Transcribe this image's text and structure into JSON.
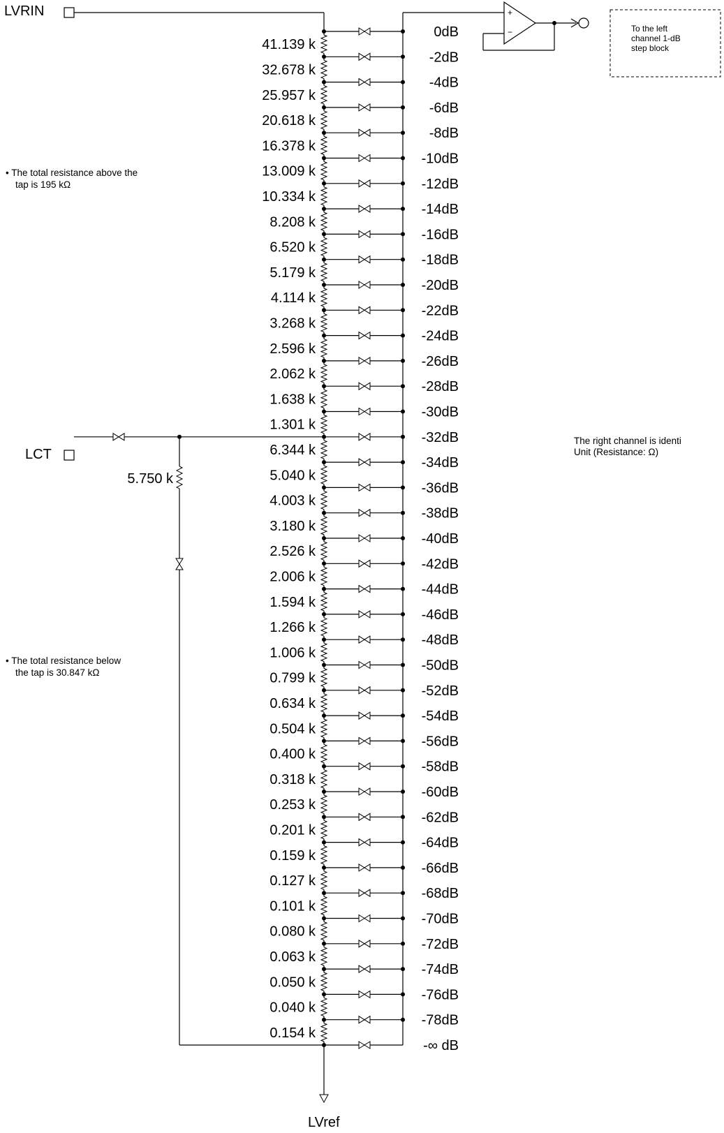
{
  "pins": {
    "input": "LVRIN",
    "tap": "LCT",
    "ref": "LVref"
  },
  "output_note": [
    "To the left",
    "channel 1-dB",
    "step block"
  ],
  "notes": {
    "above": [
      "• The total resistance above the",
      "tap is 195 kΩ"
    ],
    "below": [
      "• The total resistance below",
      "the tap is 30.847 kΩ"
    ],
    "right_channel": [
      "The right channel is identi",
      "Unit (Resistance: Ω)"
    ]
  },
  "tap_branch_resistor": "5.750 k",
  "resistors": [
    "41.139 k",
    "32.678 k",
    "25.957 k",
    "20.618 k",
    "16.378 k",
    "13.009 k",
    "10.334 k",
    "8.208 k",
    "6.520 k",
    "5.179 k",
    "4.114 k",
    "3.268 k",
    "2.596 k",
    "2.062 k",
    "1.638 k",
    "1.301 k",
    "6.344 k",
    "5.040 k",
    "4.003 k",
    "3.180 k",
    "2.526 k",
    "2.006 k",
    "1.594 k",
    "1.266 k",
    "1.006 k",
    "0.799 k",
    "0.634 k",
    "0.504 k",
    "0.400 k",
    "0.318 k",
    "0.253 k",
    "0.201 k",
    "0.159 k",
    "0.127 k",
    "0.101 k",
    "0.080 k",
    "0.063 k",
    "0.050 k",
    "0.040 k",
    "0.154 k"
  ],
  "steps": [
    "0dB",
    "-2dB",
    "-4dB",
    "-6dB",
    "-8dB",
    "-10dB",
    "-12dB",
    "-14dB",
    "-16dB",
    "-18dB",
    "-20dB",
    "-22dB",
    "-24dB",
    "-26dB",
    "-28dB",
    "-30dB",
    "-32dB",
    "-34dB",
    "-36dB",
    "-38dB",
    "-40dB",
    "-42dB",
    "-44dB",
    "-46dB",
    "-48dB",
    "-50dB",
    "-52dB",
    "-54dB",
    "-56dB",
    "-58dB",
    "-60dB",
    "-62dB",
    "-64dB",
    "-66dB",
    "-68dB",
    "-70dB",
    "-72dB",
    "-74dB",
    "-76dB",
    "-78dB",
    "-∞ dB"
  ],
  "opamp": {
    "plus": "+",
    "minus": "−"
  }
}
